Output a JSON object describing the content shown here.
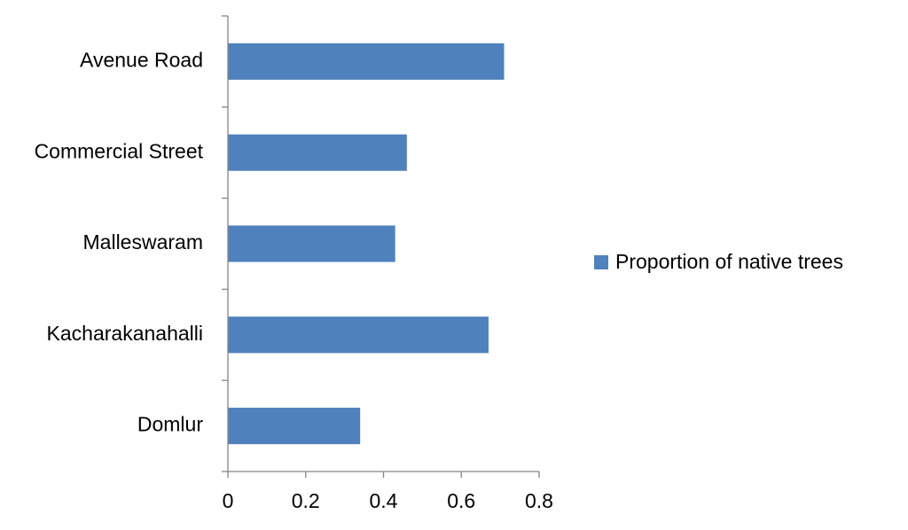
{
  "chart_data": {
    "type": "bar",
    "orientation": "horizontal",
    "categories": [
      "Avenue Road",
      "Commercial Street",
      "Malleswaram",
      "Kacharakanahalli",
      "Domlur"
    ],
    "series": [
      {
        "name": "Proportion of native trees",
        "values": [
          0.71,
          0.46,
          0.43,
          0.67,
          0.34
        ],
        "color": "#4F81BD"
      }
    ],
    "xlim": [
      0,
      0.8
    ],
    "x_ticks": [
      0,
      0.2,
      0.4,
      0.6,
      0.8
    ],
    "x_tick_labels": [
      "0",
      "0.2",
      "0.4",
      "0.6",
      "0.8"
    ],
    "title": "",
    "xlabel": "",
    "ylabel": "",
    "grid": false,
    "legend_position": "right"
  }
}
